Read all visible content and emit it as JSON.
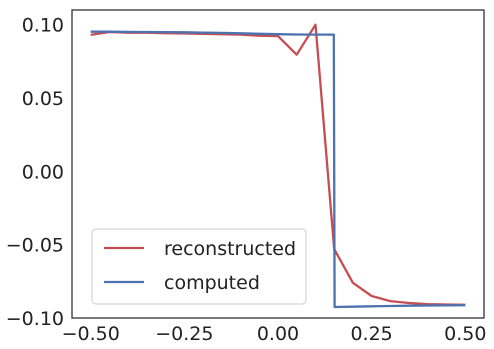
{
  "chart_data": {
    "type": "line",
    "title": "",
    "xlabel": "",
    "ylabel": "",
    "xlim": [
      -0.55,
      0.55
    ],
    "ylim": [
      -0.1,
      0.11
    ],
    "x_ticks": [
      -0.5,
      -0.25,
      0.0,
      0.25,
      0.5
    ],
    "x_tick_labels": [
      "−0.50",
      "−0.25",
      "0.00",
      "0.25",
      "0.50"
    ],
    "y_ticks": [
      -0.1,
      -0.05,
      0.0,
      0.05,
      0.1
    ],
    "y_tick_labels": [
      "−0.10",
      "−0.05",
      "0.00",
      "0.05",
      "0.10"
    ],
    "grid": false,
    "legend_position": "lower-left",
    "series": [
      {
        "name": "reconstructed",
        "color": "#c44e52",
        "x": [
          -0.5,
          -0.45,
          -0.4,
          -0.35,
          -0.3,
          -0.25,
          -0.2,
          -0.15,
          -0.1,
          -0.05,
          0.0,
          0.05,
          0.1,
          0.15,
          0.2,
          0.25,
          0.3,
          0.35,
          0.4,
          0.45,
          0.5
        ],
        "y": [
          0.093,
          0.095,
          0.0945,
          0.0945,
          0.0942,
          0.094,
          0.0938,
          0.0935,
          0.0932,
          0.0925,
          0.0922,
          0.0795,
          0.1,
          -0.053,
          -0.076,
          -0.085,
          -0.0885,
          -0.0898,
          -0.0905,
          -0.0908,
          -0.091
        ]
      },
      {
        "name": "computed",
        "color": "#4c72b0",
        "x": [
          -0.5,
          -0.45,
          -0.4,
          -0.35,
          -0.3,
          -0.25,
          -0.2,
          -0.15,
          -0.1,
          -0.05,
          0.0,
          0.05,
          0.1,
          0.149,
          0.151,
          0.2,
          0.25,
          0.3,
          0.35,
          0.4,
          0.45,
          0.5
        ],
        "y": [
          0.0952,
          0.0952,
          0.0951,
          0.095,
          0.0949,
          0.0948,
          0.0946,
          0.0944,
          0.0941,
          0.0938,
          0.0935,
          0.0933,
          0.0932,
          0.0932,
          -0.0925,
          -0.0923,
          -0.092,
          -0.0918,
          -0.0916,
          -0.0915,
          -0.0914,
          -0.0913
        ]
      }
    ]
  }
}
